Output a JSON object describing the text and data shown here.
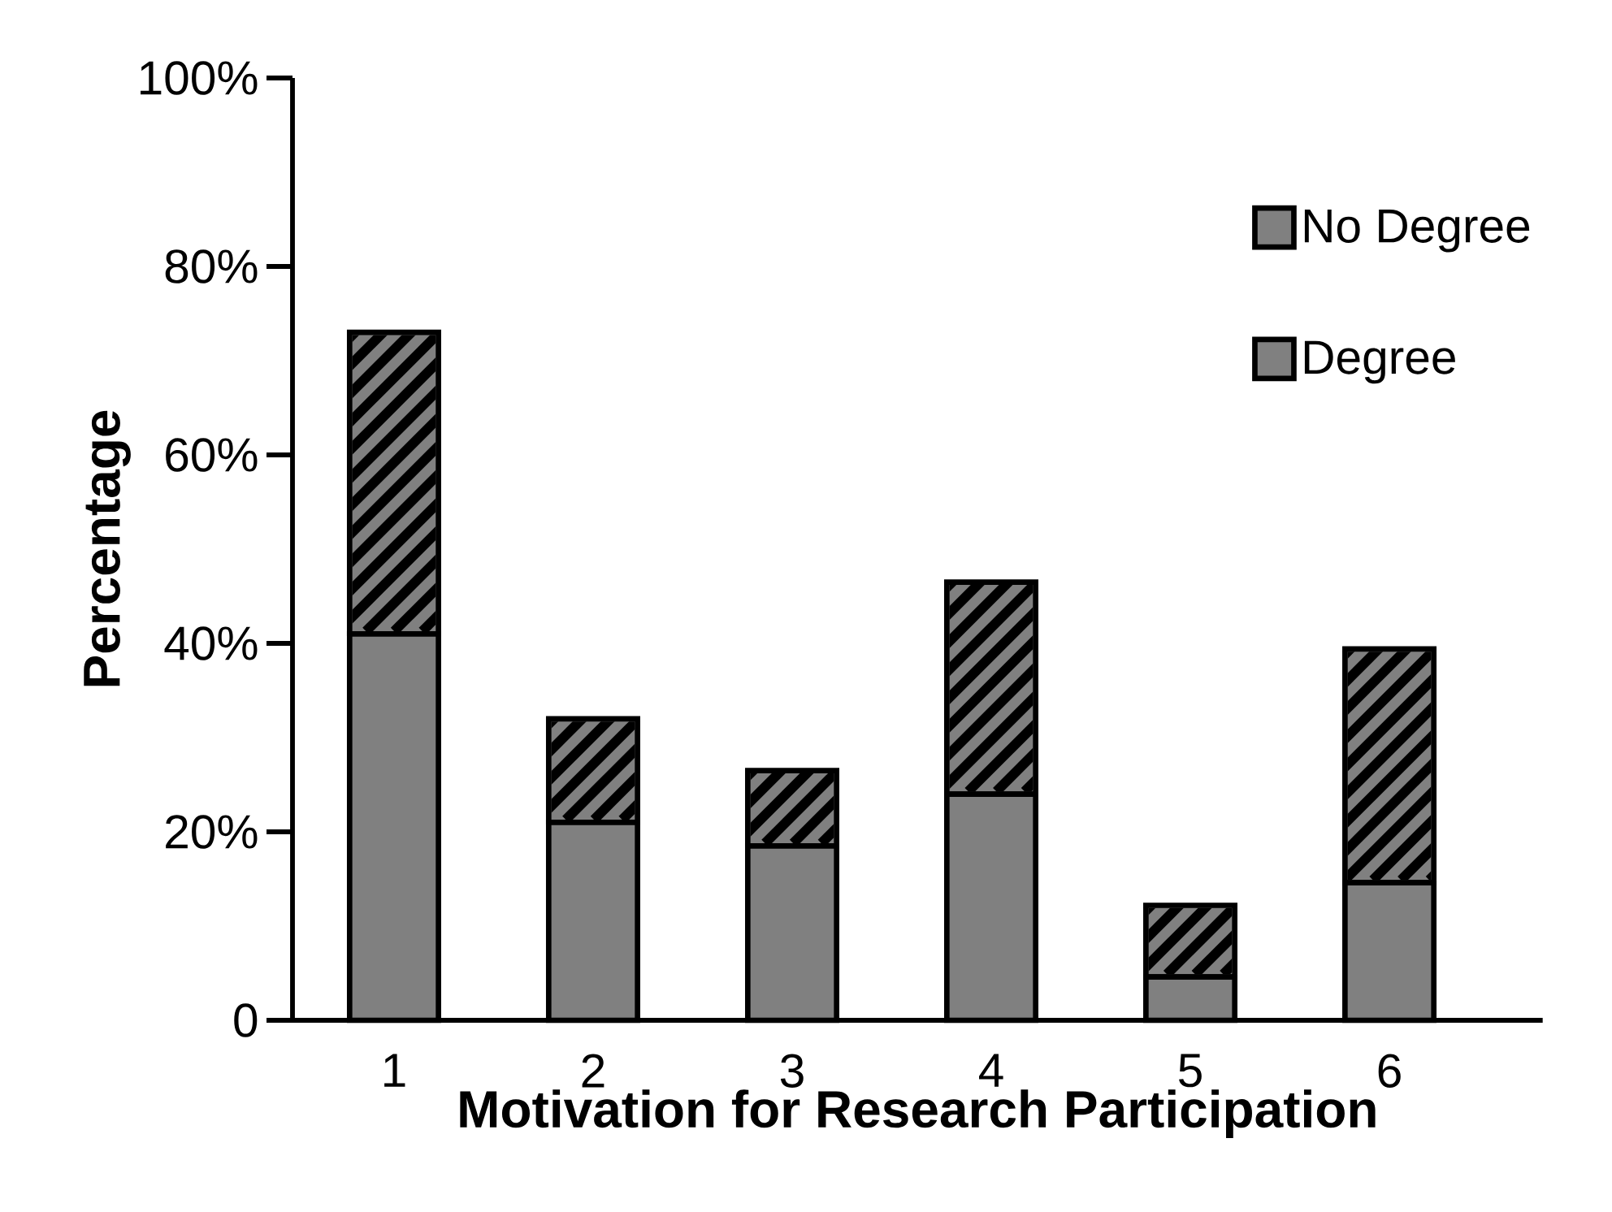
{
  "chart_data": {
    "type": "bar",
    "stacked": true,
    "xlabel": "Motivation for Research Participation",
    "ylabel": "Percentage",
    "categories": [
      "1",
      "2",
      "3",
      "4",
      "5",
      "6"
    ],
    "series": [
      {
        "name": "Degree",
        "color": "#808080",
        "values": [
          41,
          21,
          18.5,
          24,
          4.6,
          14.6
        ]
      },
      {
        "name": "No Degree",
        "color": "#808080",
        "values": [
          32,
          11,
          8,
          22.5,
          7.6,
          24.8
        ]
      }
    ],
    "ylim": [
      0,
      100
    ],
    "yticks": [
      0,
      {
        "value": 20,
        "label": "20%"
      },
      {
        "value": 40,
        "label": "40%"
      },
      {
        "value": 60,
        "label": "60%"
      },
      {
        "value": 80,
        "label": "80%"
      },
      {
        "value": 100,
        "label": "100%"
      }
    ],
    "legend": "top right",
    "grid": false
  }
}
